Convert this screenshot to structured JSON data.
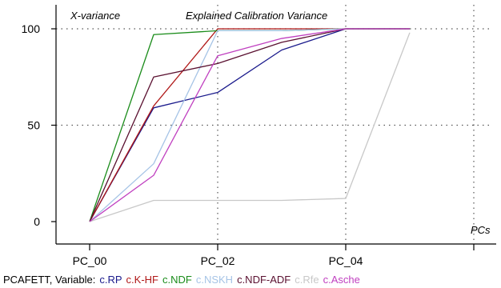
{
  "chart_data": {
    "type": "line",
    "title": "Explained Calibration Variance",
    "ylabel": "X-variance",
    "xlabel": "PCs",
    "ylim": [
      0,
      100
    ],
    "y_ticks": [
      0,
      50,
      100
    ],
    "x": [
      0,
      1,
      2,
      3,
      4,
      5
    ],
    "x_tick_labels": [
      {
        "x": 0,
        "label": "PC_00"
      },
      {
        "x": 2,
        "label": "PC_02"
      },
      {
        "x": 4,
        "label": "PC_04"
      }
    ],
    "grid": true,
    "series": [
      {
        "name": "c.RP",
        "color": "#1a1a8c",
        "values": [
          0,
          59,
          67,
          89,
          100,
          100
        ]
      },
      {
        "name": "c.K-HF",
        "color": "#b01818",
        "values": [
          0,
          60,
          100,
          100,
          100,
          100
        ]
      },
      {
        "name": "c.NDF",
        "color": "#1a8c1a",
        "values": [
          0,
          97,
          99,
          99,
          100,
          100
        ]
      },
      {
        "name": "c.NSKH",
        "color": "#a6c4e6",
        "values": [
          0,
          30,
          99,
          99,
          100,
          100
        ]
      },
      {
        "name": "c.NDF-ADF",
        "color": "#5a1030",
        "values": [
          0,
          75,
          82,
          93,
          100,
          100
        ]
      },
      {
        "name": "c.Rfe",
        "color": "#c8c8c8",
        "values": [
          0,
          11,
          11,
          11,
          12,
          98
        ]
      },
      {
        "name": "c.Asche",
        "color": "#c040c0",
        "values": [
          0,
          24,
          86,
          95,
          100,
          100
        ]
      }
    ],
    "legend": {
      "prefix": "PCAFETT, Variable:",
      "position": "bottom"
    }
  }
}
